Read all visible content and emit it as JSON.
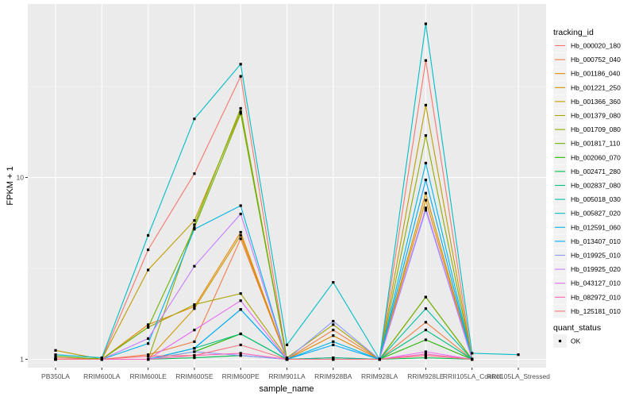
{
  "chart_data": {
    "type": "line",
    "title": "",
    "xlabel": "sample_name",
    "ylabel": "FPKM + 1",
    "y_scale": "log10",
    "ylim": [
      0.9,
      90
    ],
    "y_ticks": [
      1,
      10
    ],
    "grid": true,
    "legend_placement": "right",
    "categories": [
      "PB350LA",
      "RRIM600LA",
      "RRIM600LE",
      "RRIM600SE",
      "RRIM600PE",
      "RRIM901LA",
      "RRIM928BA",
      "RRIM928LA",
      "RRIM928LE",
      "RRII105LA_Control",
      "RRII105LA_Stressed"
    ],
    "category_labels": [
      "PB350LA",
      "RRIM600LA",
      "RRIM600LE",
      "RRIM600SE",
      "RRIM600PE",
      "RRIM901LA",
      "RRIM928BA",
      "RRIM928LA",
      "RRIM928LE",
      "RRII105LA_Control",
      "RRII105LA_Stressed"
    ],
    "legend_color_title": "tracking_id",
    "legend_shape_title": "quant_status",
    "shape_entries": [
      {
        "label": "OK"
      }
    ],
    "series": [
      {
        "name": "Hb_000020_180",
        "color": "#F8766D",
        "values": [
          1.02,
          1.0,
          4.0,
          10.5,
          36.0,
          1.0,
          1.02,
          1.0,
          44.0,
          1.0,
          null
        ]
      },
      {
        "name": "Hb_000752_040",
        "color": "#EF7F46",
        "values": [
          1.0,
          1.0,
          1.06,
          1.25,
          4.6,
          1.0,
          1.45,
          1.0,
          1.6,
          1.0,
          null
        ]
      },
      {
        "name": "Hb_001186_040",
        "color": "#E38900",
        "values": [
          1.0,
          1.0,
          1.55,
          1.95,
          5.0,
          1.0,
          1.35,
          1.0,
          7.5,
          1.0,
          null
        ]
      },
      {
        "name": "Hb_001221_250",
        "color": "#D39200",
        "values": [
          1.0,
          1.0,
          1.0,
          1.9,
          4.8,
          1.0,
          1.0,
          1.0,
          8.2,
          1.0,
          null
        ]
      },
      {
        "name": "Hb_001366_360",
        "color": "#C09B00",
        "values": [
          1.12,
          1.0,
          3.1,
          5.8,
          23.0,
          1.0,
          1.02,
          1.0,
          25.0,
          1.0,
          null
        ]
      },
      {
        "name": "Hb_001379_080",
        "color": "#A9A400",
        "values": [
          1.0,
          1.0,
          1.5,
          2.0,
          2.3,
          1.02,
          1.55,
          1.0,
          2.2,
          1.0,
          null
        ]
      },
      {
        "name": "Hb_001709_080",
        "color": "#8EAB00",
        "values": [
          1.0,
          1.0,
          1.0,
          5.5,
          24.0,
          1.0,
          1.0,
          1.0,
          17.0,
          1.0,
          null
        ]
      },
      {
        "name": "Hb_001817_110",
        "color": "#6BB100",
        "values": [
          1.04,
          1.0,
          1.5,
          5.3,
          22.5,
          1.0,
          1.0,
          1.0,
          2.2,
          1.0,
          null
        ]
      },
      {
        "name": "Hb_002060_070",
        "color": "#24B700",
        "values": [
          1.0,
          1.0,
          1.0,
          1.1,
          1.38,
          1.0,
          1.0,
          1.0,
          1.28,
          1.0,
          null
        ]
      },
      {
        "name": "Hb_002471_280",
        "color": "#00BB4E",
        "values": [
          1.0,
          1.0,
          1.0,
          1.02,
          1.05,
          1.0,
          1.0,
          1.0,
          1.02,
          1.0,
          null
        ]
      },
      {
        "name": "Hb_002837_080",
        "color": "#00BE7D",
        "values": [
          1.0,
          1.0,
          1.0,
          1.15,
          1.38,
          1.0,
          1.0,
          1.0,
          1.45,
          1.0,
          null
        ]
      },
      {
        "name": "Hb_005018_030",
        "color": "#00BFA4",
        "values": [
          1.0,
          1.0,
          1.0,
          1.15,
          1.88,
          1.0,
          1.02,
          1.0,
          1.9,
          1.0,
          null
        ]
      },
      {
        "name": "Hb_005827_020",
        "color": "#00BDC6",
        "values": [
          1.06,
          1.02,
          4.8,
          21.0,
          42.0,
          1.2,
          2.65,
          1.0,
          70.0,
          1.08,
          1.06
        ]
      },
      {
        "name": "Hb_012591_060",
        "color": "#00B5E5",
        "values": [
          1.0,
          1.0,
          1.22,
          5.2,
          7.0,
          1.0,
          1.25,
          1.0,
          12.0,
          1.0,
          null
        ]
      },
      {
        "name": "Hb_013407_010",
        "color": "#00A9FF",
        "values": [
          1.0,
          1.0,
          1.0,
          1.15,
          1.88,
          1.0,
          1.2,
          1.0,
          9.7,
          1.0,
          null
        ]
      },
      {
        "name": "Hb_019925_010",
        "color": "#8A99FF",
        "values": [
          1.0,
          1.0,
          1.0,
          1.1,
          1.05,
          1.0,
          1.62,
          1.0,
          6.6,
          1.0,
          null
        ]
      },
      {
        "name": "Hb_019925_020",
        "color": "#C77CFF",
        "values": [
          1.0,
          1.0,
          1.3,
          3.25,
          6.3,
          1.0,
          1.0,
          1.0,
          6.8,
          1.0,
          null
        ]
      },
      {
        "name": "Hb_043127_010",
        "color": "#E76BF3",
        "values": [
          1.0,
          1.0,
          1.0,
          1.45,
          2.1,
          1.0,
          1.0,
          1.0,
          1.1,
          1.0,
          null
        ]
      },
      {
        "name": "Hb_082972_010",
        "color": "#FF62BC",
        "values": [
          1.0,
          1.0,
          1.0,
          1.05,
          1.08,
          1.0,
          1.0,
          1.0,
          1.07,
          1.0,
          null
        ]
      },
      {
        "name": "Hb_125181_010",
        "color": "#FC717F",
        "values": [
          1.0,
          1.0,
          1.04,
          1.05,
          1.2,
          1.0,
          1.0,
          1.0,
          1.05,
          1.0,
          null
        ]
      }
    ]
  }
}
